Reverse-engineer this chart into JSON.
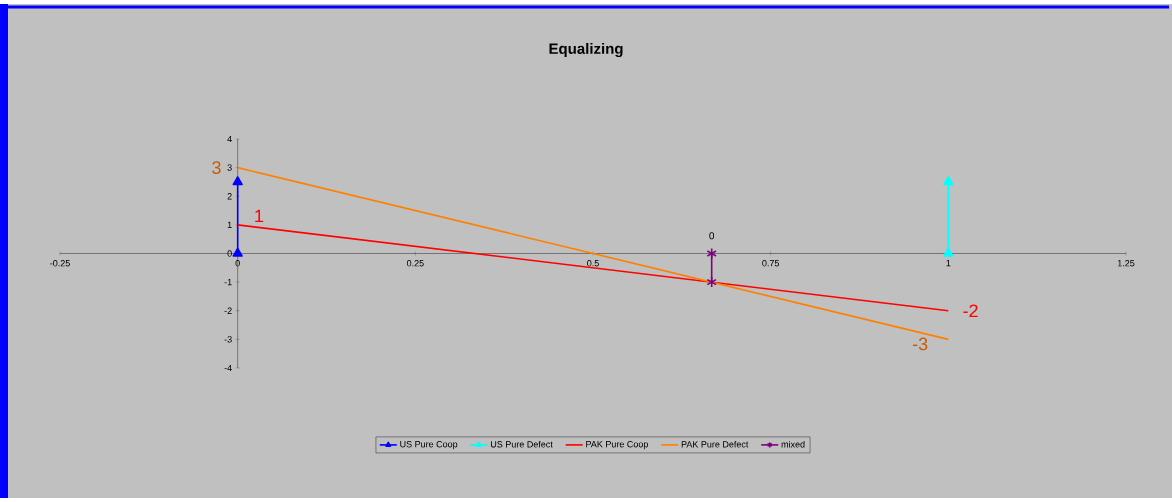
{
  "chart_data": {
    "type": "line",
    "title": "Equalizing",
    "xlim": [
      -0.25,
      1.25
    ],
    "ylim": [
      -4,
      4
    ],
    "xticks": [
      -0.25,
      0,
      0.25,
      0.5,
      0.75,
      1,
      1.25
    ],
    "yticks": [
      -4,
      -3,
      -2,
      -1,
      0,
      1,
      2,
      3,
      4
    ],
    "legend": "bottom",
    "series": [
      {
        "name": "US Pure Coop",
        "color": "#0000ff",
        "marker": "triangle",
        "x": [
          0,
          0
        ],
        "values": [
          0,
          2.5
        ]
      },
      {
        "name": "US Pure Defect",
        "color": "#00ffff",
        "marker": "triangle",
        "x": [
          1,
          1
        ],
        "values": [
          0,
          2.5
        ]
      },
      {
        "name": "PAK Pure Coop",
        "color": "#ff0000",
        "marker": "none",
        "x": [
          0,
          1
        ],
        "values": [
          1,
          -2
        ],
        "value_labels": [
          "1",
          "-2"
        ]
      },
      {
        "name": "PAK Pure Defect",
        "color": "#ff7f00",
        "marker": "none",
        "x": [
          0,
          1
        ],
        "values": [
          3,
          -3
        ],
        "value_labels": [
          "3",
          "-3"
        ]
      },
      {
        "name": "mixed",
        "color": "#800080",
        "marker": "cross",
        "x": [
          0.667,
          0.667
        ],
        "values": [
          0,
          -1
        ],
        "value_labels": [
          "0",
          null
        ]
      }
    ]
  }
}
